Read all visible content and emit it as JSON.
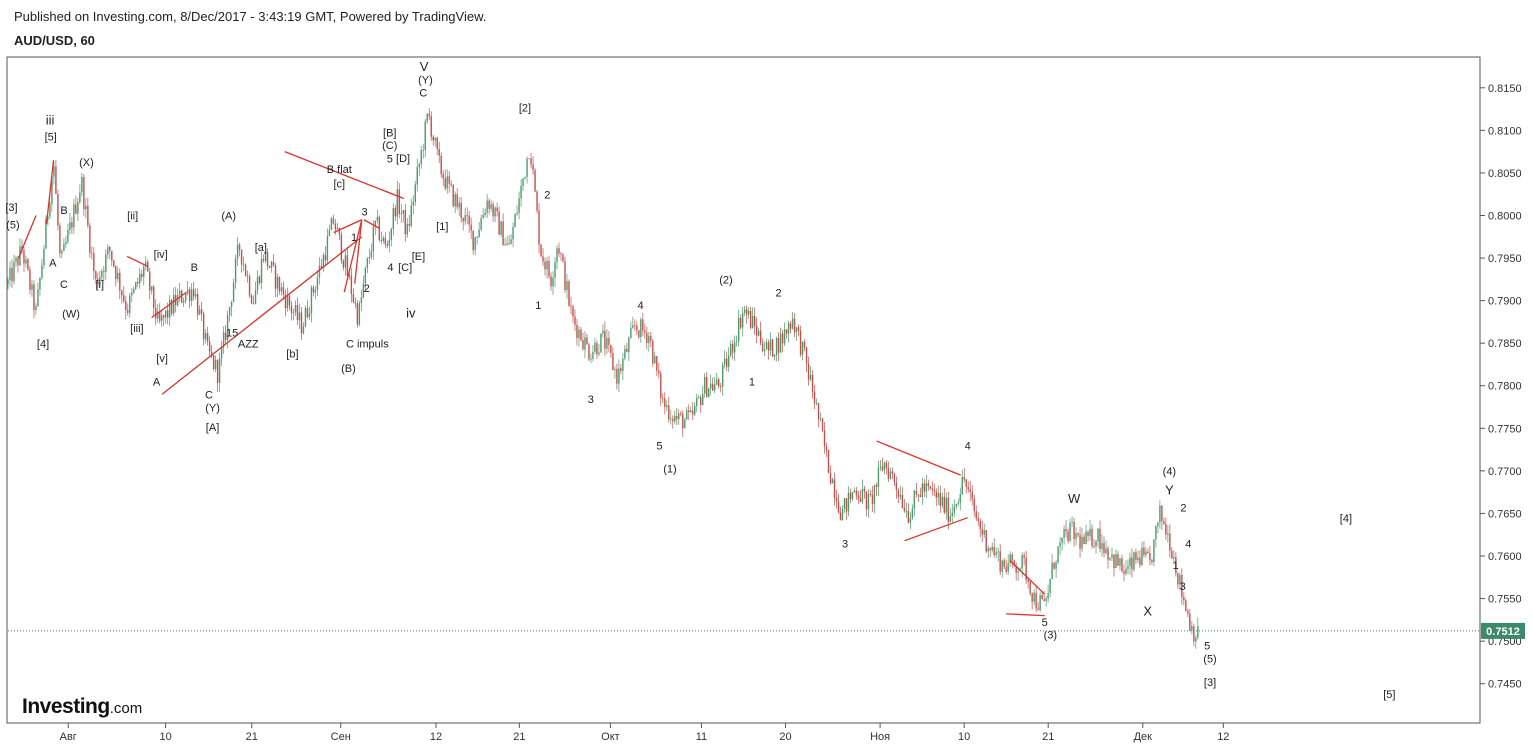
{
  "header": {
    "published": "Published on Investing.com, 8/Dec/2017 - 3:43:19 GMT, Powered by TradingView.",
    "symbol": "AUD/USD, 60"
  },
  "logo": {
    "name": "Investing",
    "suffix": ".com"
  },
  "colors": {
    "up": "#4a9a6a",
    "down": "#c0504d",
    "trendline": "#e0302a",
    "price_label_bg": "#3c8a6a",
    "price_line": "#3c8a6a"
  },
  "chart_data": {
    "type": "candlestick",
    "ylim": [
      0.7405,
      0.8185
    ],
    "y_ticks": [
      0.815,
      0.81,
      0.805,
      0.8,
      0.795,
      0.79,
      0.785,
      0.78,
      0.775,
      0.77,
      0.765,
      0.76,
      0.755,
      0.75,
      0.745
    ],
    "y_tick_labels": [
      "0.8150",
      "0.8100",
      "0.8050",
      "0.8000",
      "0.7950",
      "0.7900",
      "0.7850",
      "0.7800",
      "0.7750",
      "0.7700",
      "0.7650",
      "0.7600",
      "0.7550",
      "0.7500",
      "0.7450"
    ],
    "x_ticks": [
      {
        "label": "Авг",
        "t": 0.086
      },
      {
        "label": "10",
        "t": 0.225
      },
      {
        "label": "21",
        "t": 0.348
      },
      {
        "label": "Сен",
        "t": 0.475
      },
      {
        "label": "12",
        "t": 0.611
      },
      {
        "label": "21",
        "t": 0.73
      },
      {
        "label": "Окт",
        "t": 0.86
      },
      {
        "label": "11",
        "t": 0.99
      },
      {
        "label": "20",
        "t": 1.11
      },
      {
        "label": "Ноя",
        "t": 1.245
      },
      {
        "label": "10",
        "t": 1.365
      },
      {
        "label": "21",
        "t": 1.485
      },
      {
        "label": "Дек",
        "t": 1.62
      },
      {
        "label": "12",
        "t": 1.735
      }
    ],
    "t_range": [
      0,
      2.1
    ],
    "last_price": 0.7512,
    "last_price_label": "0.7512",
    "path": [
      [
        0.0,
        0.792
      ],
      [
        0.02,
        0.796
      ],
      [
        0.04,
        0.7885
      ],
      [
        0.055,
        0.799
      ],
      [
        0.065,
        0.8065
      ],
      [
        0.075,
        0.794
      ],
      [
        0.09,
        0.799
      ],
      [
        0.105,
        0.804
      ],
      [
        0.125,
        0.792
      ],
      [
        0.145,
        0.796
      ],
      [
        0.17,
        0.789
      ],
      [
        0.195,
        0.794
      ],
      [
        0.215,
        0.787
      ],
      [
        0.24,
        0.79
      ],
      [
        0.265,
        0.7915
      ],
      [
        0.285,
        0.784
      ],
      [
        0.3,
        0.7815
      ],
      [
        0.31,
        0.786
      ],
      [
        0.33,
        0.7965
      ],
      [
        0.35,
        0.79
      ],
      [
        0.365,
        0.7955
      ],
      [
        0.385,
        0.792
      ],
      [
        0.405,
        0.789
      ],
      [
        0.42,
        0.787
      ],
      [
        0.45,
        0.795
      ],
      [
        0.465,
        0.7995
      ],
      [
        0.485,
        0.793
      ],
      [
        0.5,
        0.788
      ],
      [
        0.51,
        0.793
      ],
      [
        0.525,
        0.799
      ],
      [
        0.54,
        0.796
      ],
      [
        0.555,
        0.802
      ],
      [
        0.57,
        0.798
      ],
      [
        0.585,
        0.805
      ],
      [
        0.6,
        0.812
      ],
      [
        0.615,
        0.806
      ],
      [
        0.63,
        0.803
      ],
      [
        0.65,
        0.8
      ],
      [
        0.665,
        0.797
      ],
      [
        0.685,
        0.802
      ],
      [
        0.7,
        0.799
      ],
      [
        0.715,
        0.796
      ],
      [
        0.73,
        0.802
      ],
      [
        0.745,
        0.8085
      ],
      [
        0.76,
        0.796
      ],
      [
        0.775,
        0.7925
      ],
      [
        0.785,
        0.797
      ],
      [
        0.805,
        0.788
      ],
      [
        0.83,
        0.784
      ],
      [
        0.85,
        0.7855
      ],
      [
        0.87,
        0.781
      ],
      [
        0.895,
        0.787
      ],
      [
        0.915,
        0.786
      ],
      [
        0.935,
        0.778
      ],
      [
        0.955,
        0.776
      ],
      [
        0.975,
        0.776
      ],
      [
        0.995,
        0.78
      ],
      [
        1.015,
        0.78
      ],
      [
        1.035,
        0.785
      ],
      [
        1.05,
        0.789
      ],
      [
        1.065,
        0.787
      ],
      [
        1.085,
        0.784
      ],
      [
        1.105,
        0.7855
      ],
      [
        1.12,
        0.788
      ],
      [
        1.135,
        0.784
      ],
      [
        1.15,
        0.779
      ],
      [
        1.17,
        0.771
      ],
      [
        1.19,
        0.765
      ],
      [
        1.21,
        0.768
      ],
      [
        1.23,
        0.766
      ],
      [
        1.25,
        0.771
      ],
      [
        1.265,
        0.769
      ],
      [
        1.285,
        0.765
      ],
      [
        1.305,
        0.768
      ],
      [
        1.325,
        0.767
      ],
      [
        1.345,
        0.765
      ],
      [
        1.365,
        0.769
      ],
      [
        1.38,
        0.765
      ],
      [
        1.395,
        0.762
      ],
      [
        1.42,
        0.759
      ],
      [
        1.45,
        0.759
      ],
      [
        1.465,
        0.755
      ],
      [
        1.48,
        0.754
      ],
      [
        1.495,
        0.76
      ],
      [
        1.515,
        0.763
      ],
      [
        1.535,
        0.7615
      ],
      [
        1.555,
        0.7625
      ],
      [
        1.575,
        0.76
      ],
      [
        1.595,
        0.758
      ],
      [
        1.615,
        0.76
      ],
      [
        1.63,
        0.759
      ],
      [
        1.645,
        0.765
      ],
      [
        1.66,
        0.7615
      ],
      [
        1.675,
        0.756
      ],
      [
        1.69,
        0.7515
      ],
      [
        1.7,
        0.7505
      ]
    ],
    "trendlines": [
      {
        "t1": 0.22,
        "p1": 0.779,
        "t2": 0.505,
        "p2": 0.7975
      },
      {
        "t1": 0.395,
        "p1": 0.8075,
        "t2": 0.565,
        "p2": 0.802
      },
      {
        "t1": 0.17,
        "p1": 0.7952,
        "t2": 0.2,
        "p2": 0.794
      },
      {
        "t1": 0.48,
        "p1": 0.791,
        "t2": 0.505,
        "p2": 0.7995
      },
      {
        "t1": 0.505,
        "p1": 0.7995,
        "t2": 0.495,
        "p2": 0.792
      },
      {
        "t1": 0.505,
        "p1": 0.7995,
        "t2": 0.465,
        "p2": 0.798
      },
      {
        "t1": 0.205,
        "p1": 0.788,
        "t2": 0.255,
        "p2": 0.791
      },
      {
        "t1": 0.508,
        "p1": 0.7995,
        "t2": 0.53,
        "p2": 0.7985
      },
      {
        "t1": 0.055,
        "p1": 0.799,
        "t2": 0.065,
        "p2": 0.8065
      },
      {
        "t1": 0.015,
        "p1": 0.795,
        "t2": 0.04,
        "p2": 0.8
      },
      {
        "t1": 1.24,
        "p1": 0.7735,
        "t2": 1.36,
        "p2": 0.7695
      },
      {
        "t1": 1.28,
        "p1": 0.7618,
        "t2": 1.37,
        "p2": 0.7645
      },
      {
        "t1": 1.43,
        "p1": 0.7595,
        "t2": 1.48,
        "p2": 0.7555
      },
      {
        "t1": 1.425,
        "p1": 0.7532,
        "t2": 1.48,
        "p2": 0.753
      }
    ],
    "annotations": [
      {
        "text": "[3]",
        "t": 0.005,
        "p": 0.8005
      },
      {
        "text": "(5)",
        "t": 0.007,
        "p": 0.7985
      },
      {
        "text": "iii",
        "t": 0.06,
        "p": 0.8107,
        "big": true
      },
      {
        "text": "[5]",
        "t": 0.061,
        "p": 0.8088
      },
      {
        "text": "(X)",
        "t": 0.112,
        "p": 0.8058
      },
      {
        "text": "B",
        "t": 0.08,
        "p": 0.8002
      },
      {
        "text": "A",
        "t": 0.064,
        "p": 0.794
      },
      {
        "text": "C",
        "t": 0.08,
        "p": 0.7915
      },
      {
        "text": "(W)",
        "t": 0.09,
        "p": 0.788
      },
      {
        "text": "[4]",
        "t": 0.05,
        "p": 0.7845
      },
      {
        "text": "[ii]",
        "t": 0.178,
        "p": 0.7995
      },
      {
        "text": "[i]",
        "t": 0.131,
        "p": 0.7915
      },
      {
        "text": "[iv]",
        "t": 0.218,
        "p": 0.795
      },
      {
        "text": "B",
        "t": 0.266,
        "p": 0.7935
      },
      {
        "text": "[iii]",
        "t": 0.184,
        "p": 0.7863
      },
      {
        "text": "[v]",
        "t": 0.22,
        "p": 0.7828
      },
      {
        "text": "A",
        "t": 0.212,
        "p": 0.78
      },
      {
        "text": "(A)",
        "t": 0.315,
        "p": 0.7995
      },
      {
        "text": "[a]",
        "t": 0.361,
        "p": 0.7958
      },
      {
        "text": "15",
        "t": 0.32,
        "p": 0.7858
      },
      {
        "text": "AZZ",
        "t": 0.343,
        "p": 0.7845
      },
      {
        "text": "[b]",
        "t": 0.406,
        "p": 0.7833
      },
      {
        "text": "C",
        "t": 0.287,
        "p": 0.7785
      },
      {
        "text": "(Y)",
        "t": 0.292,
        "p": 0.777
      },
      {
        "text": "[A]",
        "t": 0.292,
        "p": 0.7747
      },
      {
        "text": "B flat",
        "t": 0.473,
        "p": 0.805
      },
      {
        "text": "[c]",
        "t": 0.473,
        "p": 0.8033
      },
      {
        "text": "1",
        "t": 0.494,
        "p": 0.797
      },
      {
        "text": "2",
        "t": 0.512,
        "p": 0.791
      },
      {
        "text": "3",
        "t": 0.509,
        "p": 0.8
      },
      {
        "text": "4",
        "t": 0.546,
        "p": 0.7935
      },
      {
        "text": "5",
        "t": 0.545,
        "p": 0.8062
      },
      {
        "text": "C impuls",
        "t": 0.513,
        "p": 0.7845
      },
      {
        "text": "(B)",
        "t": 0.486,
        "p": 0.7816
      },
      {
        "text": "iv",
        "t": 0.575,
        "p": 0.788,
        "big": true
      },
      {
        "text": "[B]",
        "t": 0.545,
        "p": 0.8093
      },
      {
        "text": "(C)",
        "t": 0.545,
        "p": 0.8078
      },
      {
        "text": "[D]",
        "t": 0.564,
        "p": 0.8063
      },
      {
        "text": "[E]",
        "t": 0.586,
        "p": 0.7948
      },
      {
        "text": "[C]",
        "t": 0.567,
        "p": 0.7935
      },
      {
        "text": "[1]",
        "t": 0.62,
        "p": 0.7983
      },
      {
        "text": "V",
        "t": 0.594,
        "p": 0.817,
        "big": true
      },
      {
        "text": "(Y)",
        "t": 0.596,
        "p": 0.8155
      },
      {
        "text": "C",
        "t": 0.593,
        "p": 0.814
      },
      {
        "text": "[2]",
        "t": 0.738,
        "p": 0.8122
      },
      {
        "text": "2",
        "t": 0.77,
        "p": 0.802
      },
      {
        "text": "1",
        "t": 0.757,
        "p": 0.789
      },
      {
        "text": "4",
        "t": 0.903,
        "p": 0.789
      },
      {
        "text": "3",
        "t": 0.832,
        "p": 0.778
      },
      {
        "text": "5",
        "t": 0.93,
        "p": 0.7725
      },
      {
        "text": "(1)",
        "t": 0.945,
        "p": 0.7698
      },
      {
        "text": "(2)",
        "t": 1.025,
        "p": 0.792
      },
      {
        "text": "2",
        "t": 1.1,
        "p": 0.7905
      },
      {
        "text": "1",
        "t": 1.062,
        "p": 0.78
      },
      {
        "text": "4",
        "t": 1.37,
        "p": 0.7725
      },
      {
        "text": "3",
        "t": 1.195,
        "p": 0.761
      },
      {
        "text": "W",
        "t": 1.522,
        "p": 0.7662,
        "big": true
      },
      {
        "text": "5",
        "t": 1.48,
        "p": 0.7518
      },
      {
        "text": "(3)",
        "t": 1.488,
        "p": 0.7503
      },
      {
        "text": "(4)",
        "t": 1.658,
        "p": 0.7695
      },
      {
        "text": "Y",
        "t": 1.658,
        "p": 0.7672,
        "big": true
      },
      {
        "text": "2",
        "t": 1.678,
        "p": 0.7652
      },
      {
        "text": "4",
        "t": 1.685,
        "p": 0.761
      },
      {
        "text": "1",
        "t": 1.667,
        "p": 0.7585
      },
      {
        "text": "3",
        "t": 1.677,
        "p": 0.756
      },
      {
        "text": "X",
        "t": 1.627,
        "p": 0.753,
        "big": true
      },
      {
        "text": "5",
        "t": 1.712,
        "p": 0.749
      },
      {
        "text": "(5)",
        "t": 1.716,
        "p": 0.7475
      },
      {
        "text": "[3]",
        "t": 1.716,
        "p": 0.7447
      },
      {
        "text": "[4]",
        "t": 1.91,
        "p": 0.764
      },
      {
        "text": "[5]",
        "t": 1.972,
        "p": 0.7433
      }
    ]
  }
}
